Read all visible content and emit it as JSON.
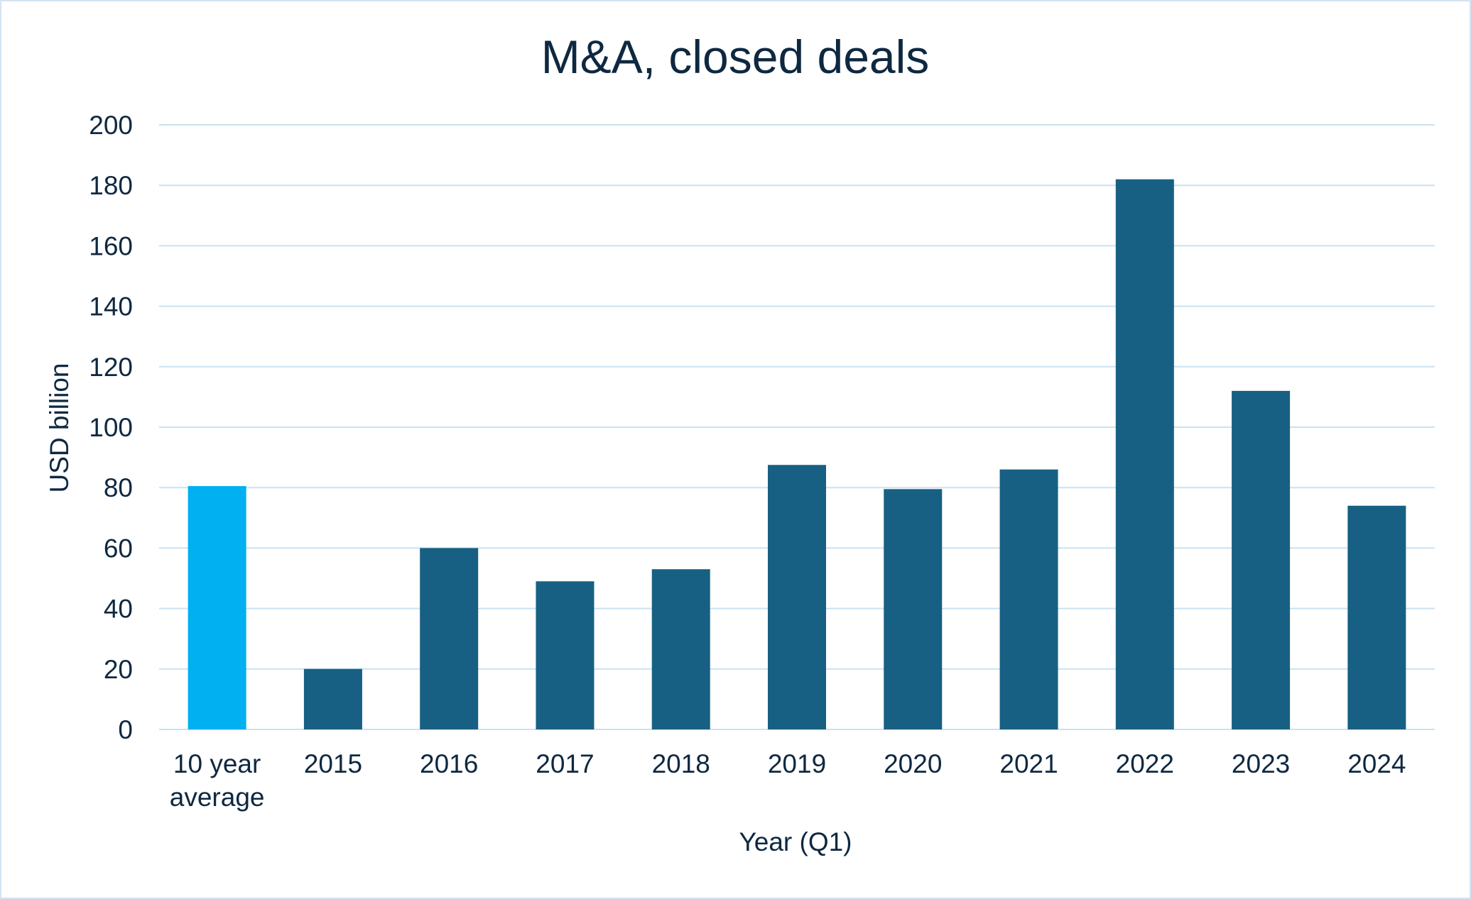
{
  "chart_data": {
    "type": "bar",
    "title": "M&A, closed deals",
    "xlabel": "Year (Q1)",
    "ylabel": "USD billion",
    "ylim": [
      0,
      200
    ],
    "yticks": [
      0,
      20,
      40,
      60,
      80,
      100,
      120,
      140,
      160,
      180,
      200
    ],
    "grid": true,
    "legend": "none",
    "categories": [
      [
        "10 year",
        "average"
      ],
      [
        "2015"
      ],
      [
        "2016"
      ],
      [
        "2017"
      ],
      [
        "2018"
      ],
      [
        "2019"
      ],
      [
        "2020"
      ],
      [
        "2021"
      ],
      [
        "2022"
      ],
      [
        "2023"
      ],
      [
        "2024"
      ]
    ],
    "values": [
      80.5,
      20,
      60,
      49,
      53,
      87.5,
      79.5,
      86,
      182,
      112,
      74
    ],
    "colors": {
      "highlight": "#00b0f0",
      "bars": "#176083",
      "grid": "#c9e2f2",
      "text": "#0e2841"
    },
    "highlight_index": 0
  }
}
